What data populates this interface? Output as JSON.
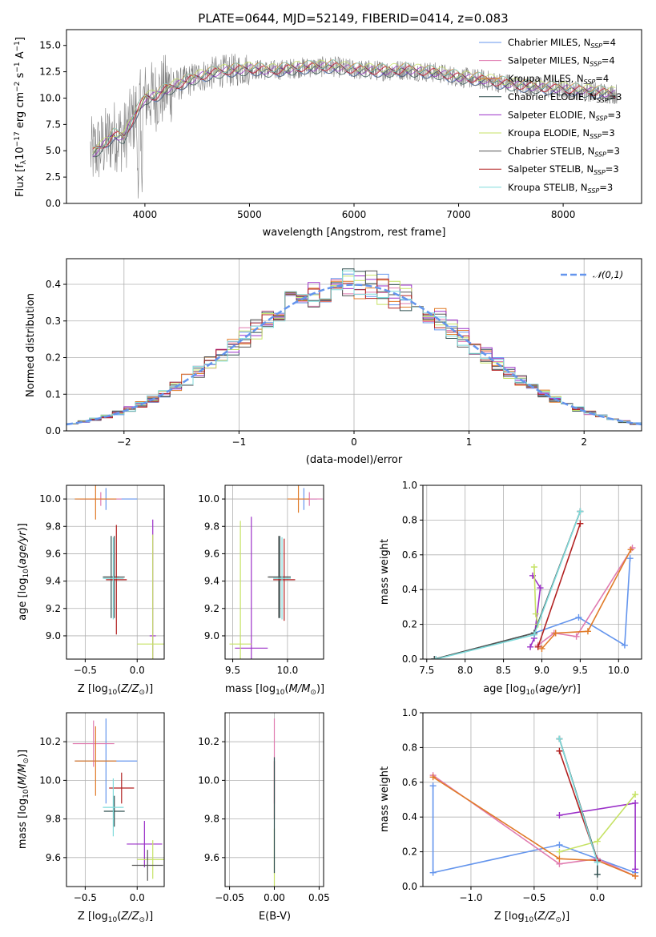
{
  "title": "PLATE=0644, MJD=52149, FIBERID=0414, z=0.083",
  "colors": {
    "Chabrier MILES": "#6495ed",
    "Salpeter MILES": "#e07bb0",
    "Kroupa MILES": "#e07b28",
    "Chabrier ELODIE": "#2f4f4f",
    "Salpeter ELODIE": "#9b30c8",
    "Kroupa ELODIE": "#c6e265",
    "Chabrier STELIB": "#555555",
    "Salpeter STELIB": "#b22222",
    "Kroupa STELIB": "#7fdbdb"
  },
  "chart_data": [
    {
      "id": "spectrum",
      "type": "line",
      "title": "PLATE=0644, MJD=52149, FIBERID=0414, z=0.083",
      "xlabel": "wavelength [Angstrom, rest frame]",
      "ylabel": "Flux [f_λ 10^-17 erg cm^-2 s^-1 A^-1]",
      "xlim": [
        3250,
        8750
      ],
      "ylim": [
        0,
        16.5
      ],
      "xticks": [
        4000,
        5000,
        6000,
        7000,
        8000
      ],
      "yticks": [
        0.0,
        2.5,
        5.0,
        7.5,
        10.0,
        12.5,
        15.0
      ],
      "legend_position": "upper-right",
      "legend": [
        "Chabrier MILES, N_SSP=4",
        "Salpeter MILES, N_SSP=4",
        "Kroupa MILES, N_SSP=4",
        "Chabrier ELODIE, N_SSP=3",
        "Salpeter ELODIE, N_SSP=3",
        "Kroupa ELODIE, N_SSP=3",
        "Chabrier STELIB, N_SSP=3",
        "Salpeter STELIB, N_SSP=3",
        "Kroupa STELIB, N_SSP=3"
      ],
      "model_anchor_points": {
        "x": [
          3500,
          3600,
          3700,
          3800,
          3900,
          4000,
          4100,
          4200,
          4300,
          4500,
          4700,
          5000,
          5200,
          5500,
          5800,
          6000,
          6300,
          6500,
          6800,
          7000,
          7200,
          7500,
          7800,
          8000,
          8300,
          8500
        ],
        "y": [
          4.8,
          5.5,
          6.5,
          6.3,
          8.3,
          10.0,
          10.2,
          10.8,
          11.2,
          12.0,
          12.5,
          12.8,
          12.6,
          12.9,
          13.0,
          12.7,
          12.6,
          12.7,
          12.4,
          12.0,
          11.8,
          11.3,
          11.0,
          10.9,
          10.6,
          10.4
        ]
      }
    },
    {
      "id": "residuals",
      "type": "histogram",
      "xlabel": "(data-model)/error",
      "ylabel": "Normed distribution",
      "xlim": [
        -2.5,
        2.5
      ],
      "ylim": [
        0,
        0.47
      ],
      "xticks": [
        -2,
        -1,
        0,
        1,
        2
      ],
      "yticks": [
        0.0,
        0.1,
        0.2,
        0.3,
        0.4
      ],
      "legend": [
        "𝒩(0,1)"
      ],
      "legend_position": "upper-right",
      "bin_width": 0.1
    },
    {
      "id": "age_vs_Z",
      "type": "scatter",
      "xlabel": "Z [log10(Z/Z⊙)]",
      "ylabel": "age  [log10(age/yr)]",
      "xlim": [
        -0.68,
        0.26
      ],
      "ylim": [
        8.83,
        10.1
      ],
      "xticks": [
        -0.5,
        0.0
      ],
      "yticks": [
        9.0,
        9.2,
        9.4,
        9.6,
        9.8,
        10.0
      ],
      "points": [
        {
          "model": "Chabrier MILES",
          "x": -0.3,
          "y": 10.0,
          "xerr": 0.3,
          "yerr": 0.08
        },
        {
          "model": "Salpeter MILES",
          "x": -0.35,
          "y": 10.0,
          "xerr": 0.2,
          "yerr": 0.05
        },
        {
          "model": "Kroupa MILES",
          "x": -0.4,
          "y": 10.0,
          "xerr": 0.2,
          "yerr": 0.15
        },
        {
          "model": "Chabrier ELODIE",
          "x": -0.25,
          "y": 9.43,
          "xerr": 0.08,
          "yerr": 0.3
        },
        {
          "model": "Salpeter ELODIE",
          "x": 0.15,
          "y": 9.0,
          "xerr": 0.03,
          "yerr": 0.85
        },
        {
          "model": "Kroupa ELODIE",
          "x": 0.15,
          "y": 8.94,
          "xerr": 0.15,
          "yerr": 0.8
        },
        {
          "model": "Chabrier STELIB",
          "x": -0.22,
          "y": 9.43,
          "xerr": 0.1,
          "yerr": 0.3
        },
        {
          "model": "Salpeter STELIB",
          "x": -0.2,
          "y": 9.41,
          "xerr": 0.1,
          "yerr": 0.4
        },
        {
          "model": "Kroupa STELIB",
          "x": -0.23,
          "y": 9.42,
          "xerr": 0.1,
          "yerr": 0.3
        }
      ]
    },
    {
      "id": "age_vs_mass",
      "type": "scatter",
      "xlabel": "mass [log10(M/M⊙)]",
      "xlim": [
        9.43,
        10.33
      ],
      "ylim": [
        8.83,
        10.1
      ],
      "xticks": [
        9.5,
        10.0
      ],
      "yticks": [
        9.0,
        9.2,
        9.4,
        9.6,
        9.8,
        10.0
      ],
      "points": [
        {
          "model": "Chabrier MILES",
          "x": 10.15,
          "y": 10.0,
          "xerr": 0.12,
          "yerr": 0.08
        },
        {
          "model": "Salpeter MILES",
          "x": 10.2,
          "y": 10.0,
          "xerr": 0.12,
          "yerr": 0.05
        },
        {
          "model": "Kroupa MILES",
          "x": 10.1,
          "y": 10.0,
          "xerr": 0.1,
          "yerr": 0.1
        },
        {
          "model": "Chabrier ELODIE",
          "x": 9.93,
          "y": 9.43,
          "xerr": 0.1,
          "yerr": 0.3
        },
        {
          "model": "Salpeter ELODIE",
          "x": 9.67,
          "y": 8.91,
          "xerr": 0.15,
          "yerr": 0.96
        },
        {
          "model": "Kroupa ELODIE",
          "x": 9.57,
          "y": 8.94,
          "xerr": 0.1,
          "yerr": 0.9
        },
        {
          "model": "Chabrier STELIB",
          "x": 9.92,
          "y": 9.43,
          "xerr": 0.1,
          "yerr": 0.3
        },
        {
          "model": "Salpeter STELIB",
          "x": 9.97,
          "y": 9.41,
          "xerr": 0.1,
          "yerr": 0.3
        },
        {
          "model": "Kroupa STELIB",
          "x": 9.95,
          "y": 9.42,
          "xerr": 0.08,
          "yerr": 0.3
        }
      ]
    },
    {
      "id": "weight_vs_age",
      "type": "line",
      "xlabel": "age  [log10(age/yr)]",
      "ylabel": "mass weight",
      "xlim": [
        7.45,
        10.3
      ],
      "ylim": [
        0,
        1.0
      ],
      "xticks": [
        7.5,
        8.0,
        8.5,
        9.0,
        9.5,
        10.0
      ],
      "yticks": [
        0.0,
        0.2,
        0.4,
        0.6,
        0.8,
        1.0
      ],
      "series": [
        {
          "model": "Chabrier MILES",
          "x": [
            8.9,
            9.48,
            10.08,
            10.15
          ],
          "y": [
            0.15,
            0.24,
            0.08,
            0.58
          ]
        },
        {
          "model": "Salpeter MILES",
          "x": [
            8.95,
            9.16,
            9.45,
            10.18
          ],
          "y": [
            0.08,
            0.15,
            0.13,
            0.64
          ]
        },
        {
          "model": "Kroupa MILES",
          "x": [
            9.0,
            9.18,
            9.6,
            10.16
          ],
          "y": [
            0.06,
            0.15,
            0.16,
            0.63
          ]
        },
        {
          "model": "Chabrier ELODIE",
          "x": [
            7.6,
            8.9,
            9.5
          ],
          "y": [
            0.0,
            0.15,
            0.85
          ]
        },
        {
          "model": "Salpeter ELODIE",
          "x": [
            8.85,
            8.9,
            8.98,
            8.88
          ],
          "y": [
            0.07,
            0.12,
            0.41,
            0.48
          ]
        },
        {
          "model": "Kroupa ELODIE",
          "x": [
            8.9,
            8.92,
            8.95
          ],
          "y": [
            0.53,
            0.26,
            0.2
          ]
        },
        {
          "model": "Chabrier STELIB",
          "x": [
            7.6,
            8.9,
            9.5
          ],
          "y": [
            0.0,
            0.15,
            0.85
          ]
        },
        {
          "model": "Salpeter STELIB",
          "x": [
            8.95,
            9.5
          ],
          "y": [
            0.07,
            0.78
          ]
        },
        {
          "model": "Kroupa STELIB",
          "x": [
            7.62,
            8.9,
            9.5
          ],
          "y": [
            0.0,
            0.14,
            0.85
          ]
        }
      ]
    },
    {
      "id": "mass_vs_Z",
      "type": "scatter",
      "xlabel": "Z [log10(Z/Z⊙)]",
      "ylabel": "mass [log10(M/M⊙)]",
      "xlim": [
        -0.68,
        0.26
      ],
      "ylim": [
        9.45,
        10.35
      ],
      "xticks": [
        -0.5,
        0.0
      ],
      "yticks": [
        9.6,
        9.8,
        10.0,
        10.2
      ],
      "points": [
        {
          "model": "Chabrier MILES",
          "x": -0.3,
          "y": 10.1,
          "xerr": 0.3,
          "yerr": 0.22
        },
        {
          "model": "Salpeter MILES",
          "x": -0.42,
          "y": 10.19,
          "xerr": 0.2,
          "yerr": 0.12
        },
        {
          "model": "Kroupa MILES",
          "x": -0.4,
          "y": 10.1,
          "xerr": 0.2,
          "yerr": 0.18
        },
        {
          "model": "Chabrier ELODIE",
          "x": -0.22,
          "y": 9.84,
          "xerr": 0.1,
          "yerr": 0.08
        },
        {
          "model": "Salpeter ELODIE",
          "x": 0.07,
          "y": 9.67,
          "xerr": 0.17,
          "yerr": 0.12
        },
        {
          "model": "Kroupa ELODIE",
          "x": 0.15,
          "y": 9.59,
          "xerr": 0.15,
          "yerr": 0.1
        },
        {
          "model": "Chabrier STELIB",
          "x": 0.1,
          "y": 9.56,
          "xerr": 0.15,
          "yerr": 0.08
        },
        {
          "model": "Salpeter STELIB",
          "x": -0.15,
          "y": 9.96,
          "xerr": 0.12,
          "yerr": 0.08
        },
        {
          "model": "Kroupa STELIB",
          "x": -0.23,
          "y": 9.86,
          "xerr": 0.1,
          "yerr": 0.15
        }
      ]
    },
    {
      "id": "mass_vs_ebv",
      "type": "scatter",
      "xlabel": "E(B-V)",
      "xlim": [
        -0.055,
        0.055
      ],
      "ylim": [
        9.45,
        10.35
      ],
      "xticks": [
        -0.05,
        0.0,
        0.05
      ],
      "yticks": [
        9.6,
        9.8,
        10.0,
        10.2
      ],
      "points": [
        {
          "model": "Salpeter MILES",
          "x": 0.0,
          "y": 10.1,
          "yerr": 0.22
        },
        {
          "model": "Salpeter STELIB",
          "x": 0.0,
          "y": 9.95,
          "yerr": 0.15
        },
        {
          "model": "Kroupa ELODIE",
          "x": 0.0,
          "y": 9.6,
          "yerr": 0.15
        },
        {
          "model": "Chabrier ELODIE",
          "x": 0.0,
          "y": 9.82,
          "yerr": 0.3
        }
      ]
    },
    {
      "id": "weight_vs_Z",
      "type": "line",
      "xlabel": "Z [log10(Z/Z⊙)]",
      "ylabel": "mass weight",
      "xlim": [
        -1.38,
        0.35
      ],
      "ylim": [
        0,
        1.0
      ],
      "xticks": [
        -1.0,
        -0.5,
        0.0
      ],
      "yticks": [
        0.0,
        0.2,
        0.4,
        0.6,
        0.8,
        1.0
      ],
      "series": [
        {
          "model": "Chabrier MILES",
          "x": [
            -1.3,
            -1.3,
            -0.3,
            0.0,
            0.3
          ],
          "y": [
            0.58,
            0.08,
            0.24,
            0.16,
            0.08
          ]
        },
        {
          "model": "Salpeter MILES",
          "x": [
            -1.3,
            -0.3,
            0.0,
            0.3
          ],
          "y": [
            0.64,
            0.13,
            0.16,
            0.06
          ]
        },
        {
          "model": "Kroupa MILES",
          "x": [
            -1.3,
            -0.3,
            0.0,
            0.3
          ],
          "y": [
            0.63,
            0.16,
            0.15,
            0.06
          ]
        },
        {
          "model": "Chabrier ELODIE",
          "x": [
            -0.3,
            0.0,
            0.0
          ],
          "y": [
            0.85,
            0.15,
            0.07
          ]
        },
        {
          "model": "Salpeter ELODIE",
          "x": [
            -0.3,
            0.3,
            0.3
          ],
          "y": [
            0.41,
            0.48,
            0.1
          ]
        },
        {
          "model": "Kroupa ELODIE",
          "x": [
            -0.3,
            0.0,
            0.3
          ],
          "y": [
            0.2,
            0.26,
            0.53
          ]
        },
        {
          "model": "Chabrier STELIB",
          "x": [
            -0.3,
            0.0
          ],
          "y": [
            0.85,
            0.15
          ]
        },
        {
          "model": "Salpeter STELIB",
          "x": [
            -0.3,
            0.0
          ],
          "y": [
            0.78,
            0.15
          ]
        },
        {
          "model": "Kroupa STELIB",
          "x": [
            -0.3,
            0.0
          ],
          "y": [
            0.85,
            0.14
          ]
        }
      ]
    }
  ]
}
